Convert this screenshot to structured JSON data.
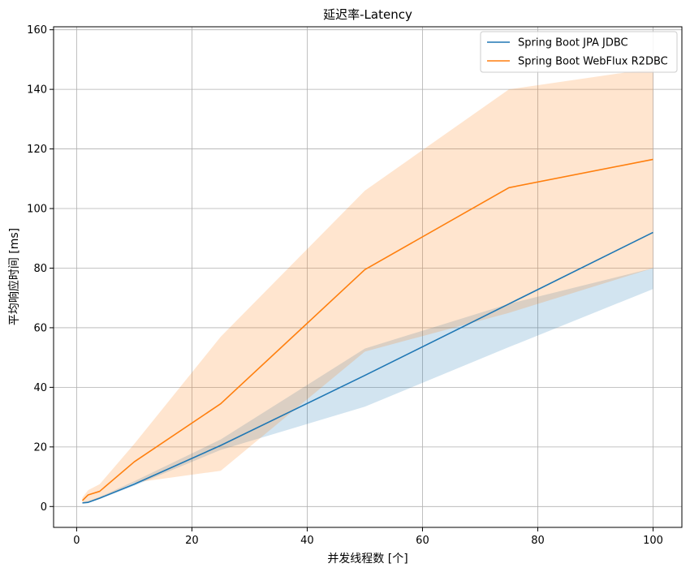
{
  "chart_data": {
    "type": "line",
    "title": "延迟率-Latency",
    "xlabel": "并发线程数 [个]",
    "ylabel": "平均响应时间 [ms]",
    "xlim": [
      -4,
      105
    ],
    "ylim": [
      -7,
      161
    ],
    "x_ticks": [
      0,
      20,
      40,
      60,
      80,
      100
    ],
    "x_tick_labels": [
      "0",
      "20",
      "40",
      "60",
      "80",
      "100"
    ],
    "y_ticks": [
      0,
      20,
      40,
      60,
      80,
      100,
      120,
      140,
      160
    ],
    "y_tick_labels": [
      "0",
      "20",
      "40",
      "60",
      "80",
      "100",
      "120",
      "140",
      "160"
    ],
    "grid": true,
    "legend_position": "top-right",
    "series": [
      {
        "name": "Spring Boot JPA JDBC",
        "color": "#1f77b4",
        "x": [
          1,
          2,
          4,
          10,
          25,
          50,
          75,
          100
        ],
        "y": [
          1.2,
          1.4,
          2.8,
          7.5,
          20.5,
          44,
          68,
          92
        ],
        "band_lower": [
          1.0,
          1.2,
          2.5,
          7.0,
          19.0,
          33.5,
          53.5,
          73
        ],
        "band_upper": [
          1.5,
          1.8,
          3.2,
          8.5,
          22.5,
          53,
          68,
          80
        ]
      },
      {
        "name": "Spring Boot WebFlux R2DBC",
        "color": "#ff7f0e",
        "x": [
          1,
          2,
          4,
          10,
          25,
          50,
          75,
          100
        ],
        "y": [
          2.0,
          3.9,
          5.1,
          15,
          34.5,
          79.5,
          107,
          116.5
        ],
        "band_lower": [
          1.0,
          1.3,
          2.6,
          8.0,
          12.0,
          52,
          65,
          80
        ],
        "band_upper": [
          3.0,
          5.5,
          7.5,
          21,
          57,
          106,
          140,
          147
        ]
      }
    ]
  }
}
